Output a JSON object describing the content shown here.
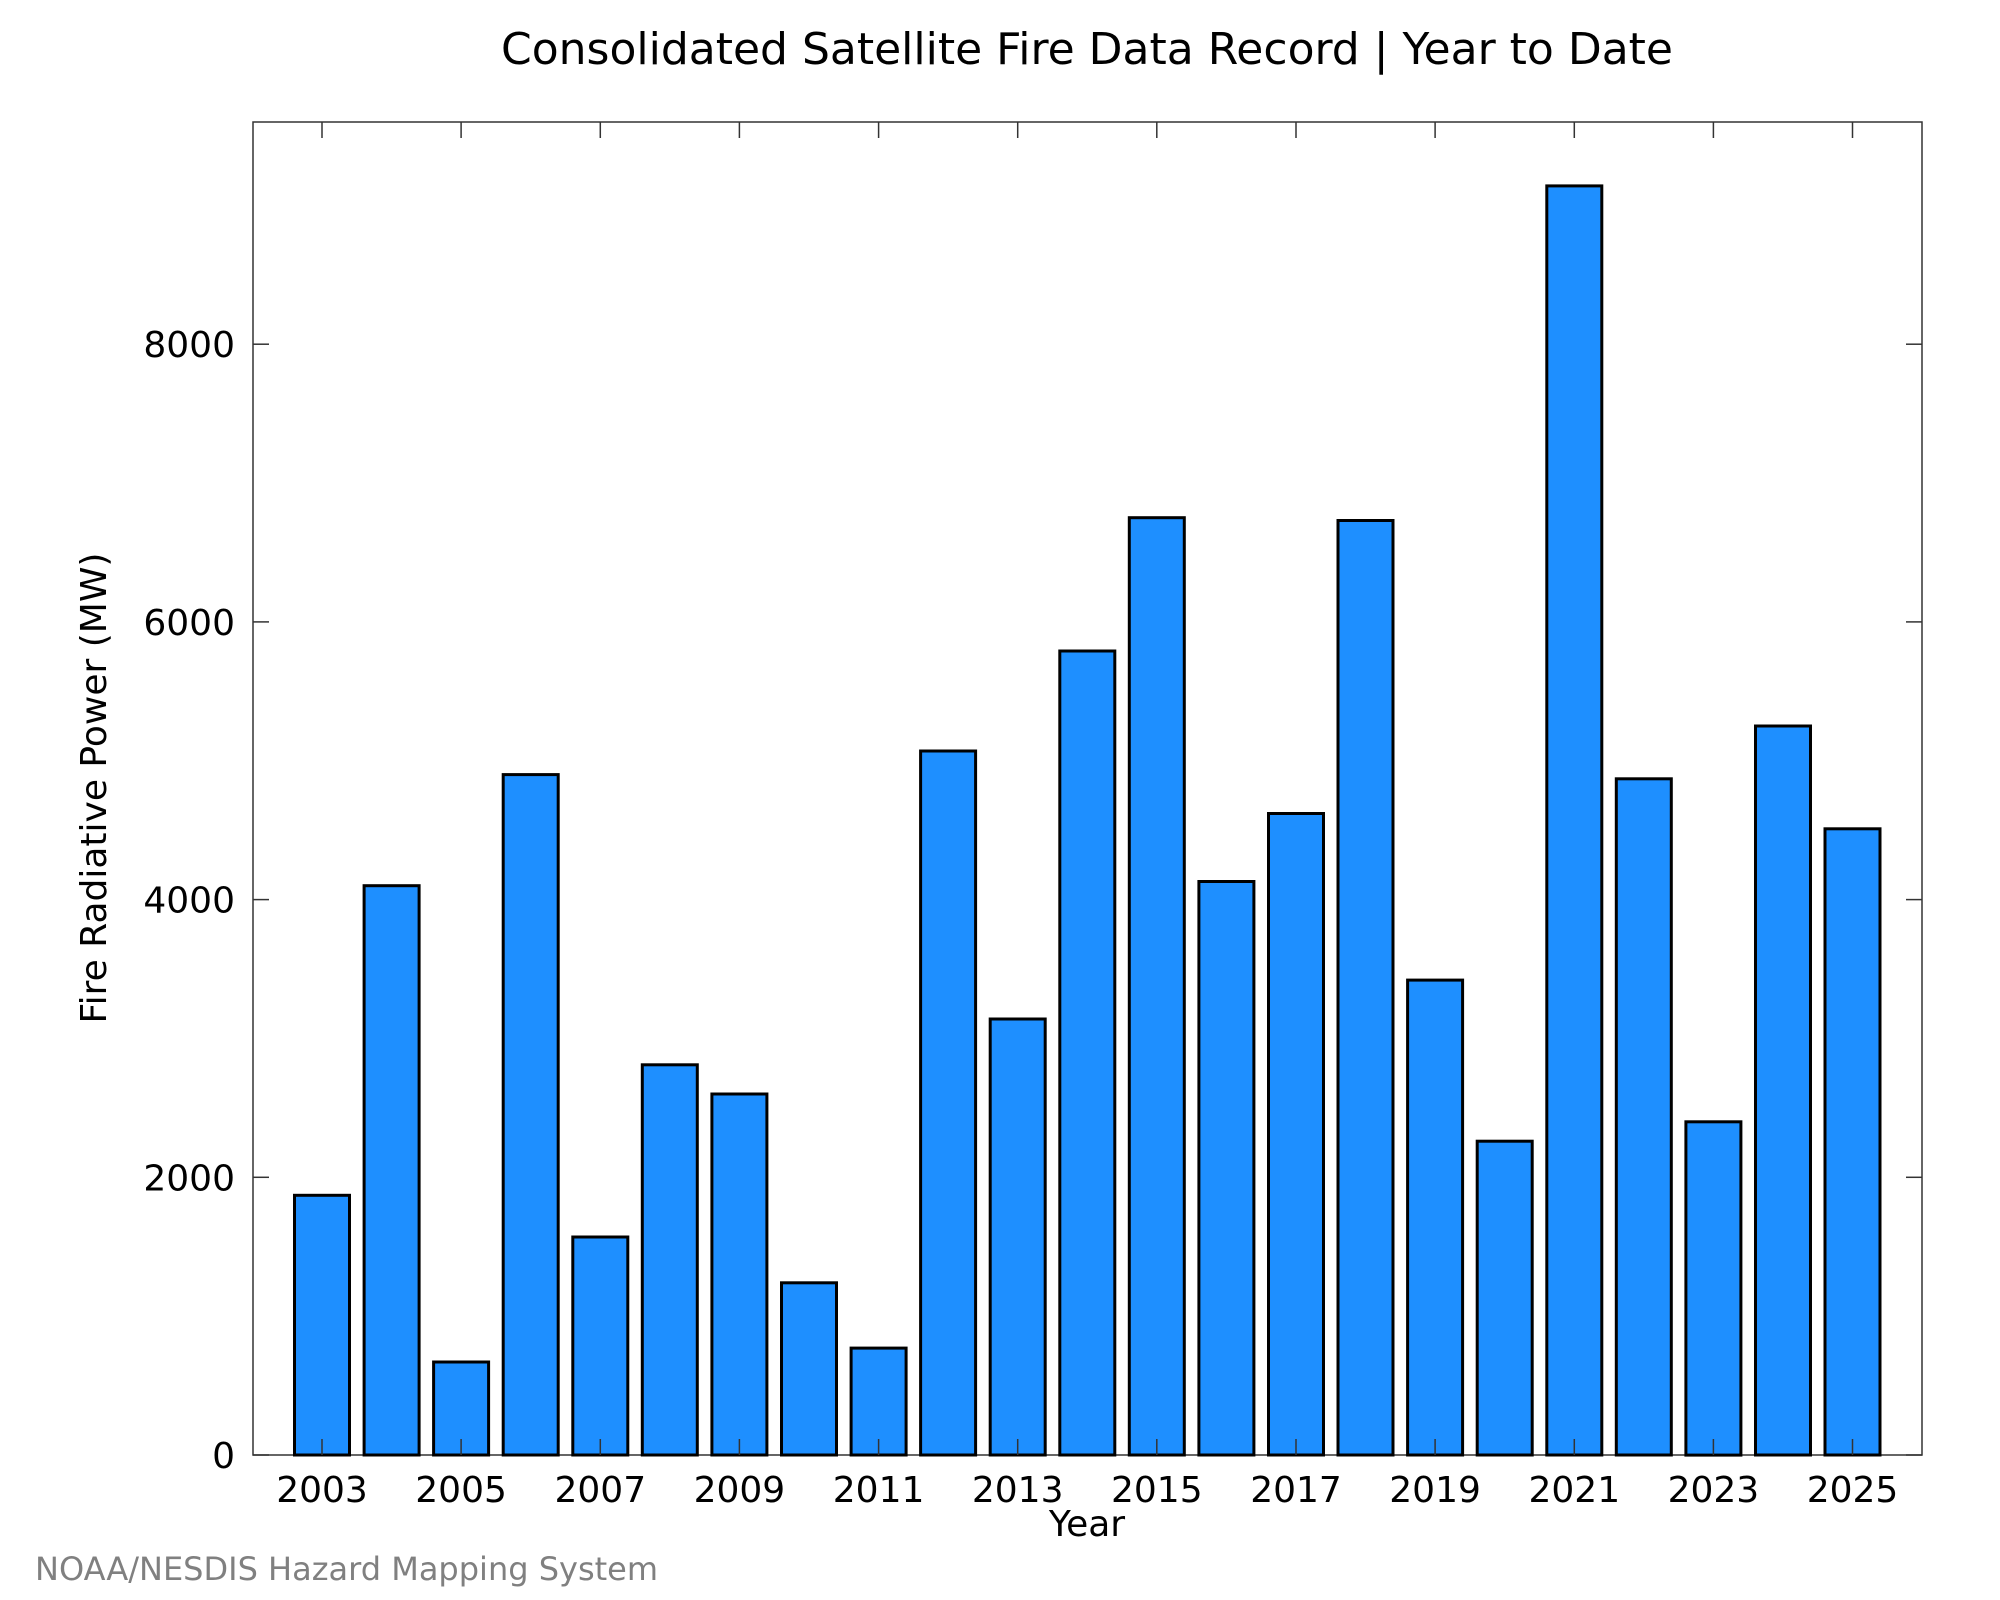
{
  "chart_data": {
    "type": "bar",
    "title": "Consolidated Satellite Fire Data Record | Year to Date",
    "xlabel": "Year",
    "ylabel": "Fire Radiative Power (MW)",
    "categories": [
      "2003",
      "2004",
      "2005",
      "2006",
      "2007",
      "2008",
      "2009",
      "2010",
      "2011",
      "2012",
      "2013",
      "2014",
      "2015",
      "2016",
      "2017",
      "2018",
      "2019",
      "2020",
      "2021",
      "2022",
      "2023",
      "2024",
      "2025"
    ],
    "values": [
      1870,
      4100,
      670,
      4900,
      1570,
      2810,
      2600,
      1240,
      770,
      5070,
      3140,
      5790,
      6750,
      4130,
      4620,
      6730,
      3420,
      2260,
      9140,
      4870,
      2400,
      5250,
      4510
    ],
    "x_tick_labels": [
      "2003",
      "2005",
      "2007",
      "2009",
      "2011",
      "2013",
      "2015",
      "2017",
      "2019",
      "2021",
      "2023",
      "2025"
    ],
    "y_ticks": [
      "0",
      "2000",
      "4000",
      "6000",
      "8000"
    ],
    "ylim": [
      0,
      9600
    ],
    "grid": false,
    "bar_color": "#1E8FFF",
    "edge_color": "#000000"
  },
  "credit": "NOAA/NESDIS Hazard Mapping System"
}
